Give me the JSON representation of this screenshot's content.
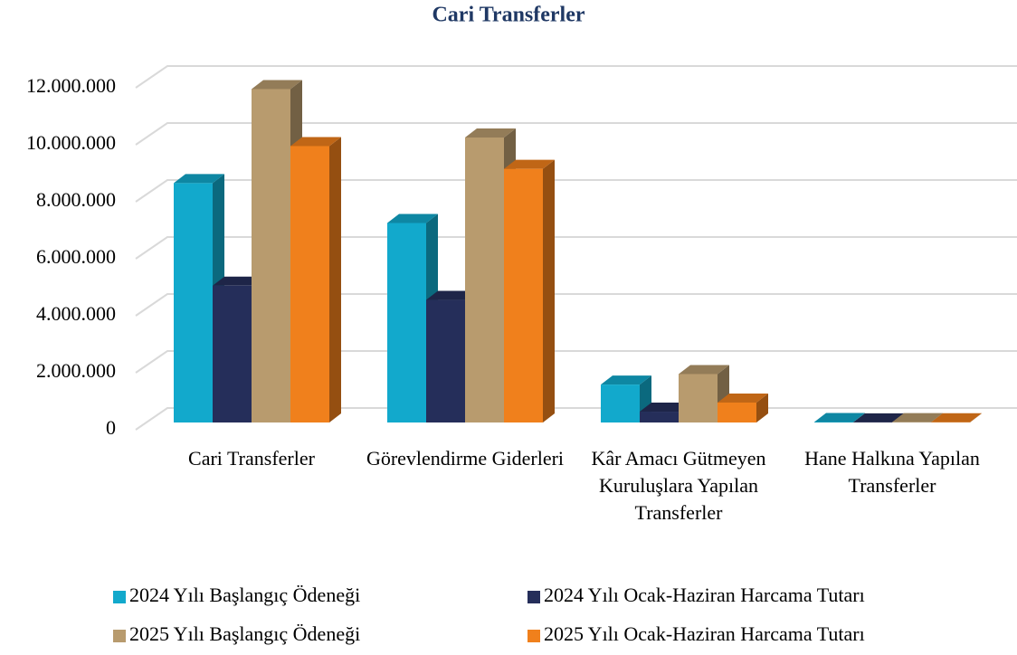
{
  "chart_data": {
    "type": "bar3d",
    "title": "Cari Transferler",
    "categories": [
      "Cari Transferler",
      "Görevlendirme Giderleri",
      "Kâr Amacı Gütmeyen Kuruluşlara Yapılan Transferler",
      "Hane Halkına Yapılan Transferler"
    ],
    "series": [
      {
        "name": "2024 Yılı Başlangıç Ödeneği",
        "color": "#12a9cc",
        "values": [
          8400000,
          7000000,
          1330000,
          15000
        ]
      },
      {
        "name": "2024 Yılı Ocak-Haziran Harcama Tutarı",
        "color": "#252e5a",
        "values": [
          4800000,
          4300000,
          380000,
          5000
        ]
      },
      {
        "name": "2025 Yılı Başlangıç Ödeneği",
        "color": "#b89b6e",
        "values": [
          11700000,
          10000000,
          1700000,
          10000
        ]
      },
      {
        "name": "2025 Yılı Ocak-Haziran Harcama Tutarı",
        "color": "#f0801c",
        "values": [
          9700000,
          8900000,
          700000,
          8000
        ]
      }
    ],
    "ylim": [
      0,
      12000000
    ],
    "yticks": [
      0,
      {
        "value": 2000000,
        "label": "2.000.000"
      },
      {
        "value": 4000000,
        "label": "4.000.000"
      },
      {
        "value": 6000000,
        "label": "6.000.000"
      },
      {
        "value": 8000000,
        "label": "8.000.000"
      },
      {
        "value": 10000000,
        "label": "10.000.000"
      },
      {
        "value": 12000000,
        "label": "12.000.000"
      }
    ],
    "grid": true,
    "legend": "bottom"
  }
}
